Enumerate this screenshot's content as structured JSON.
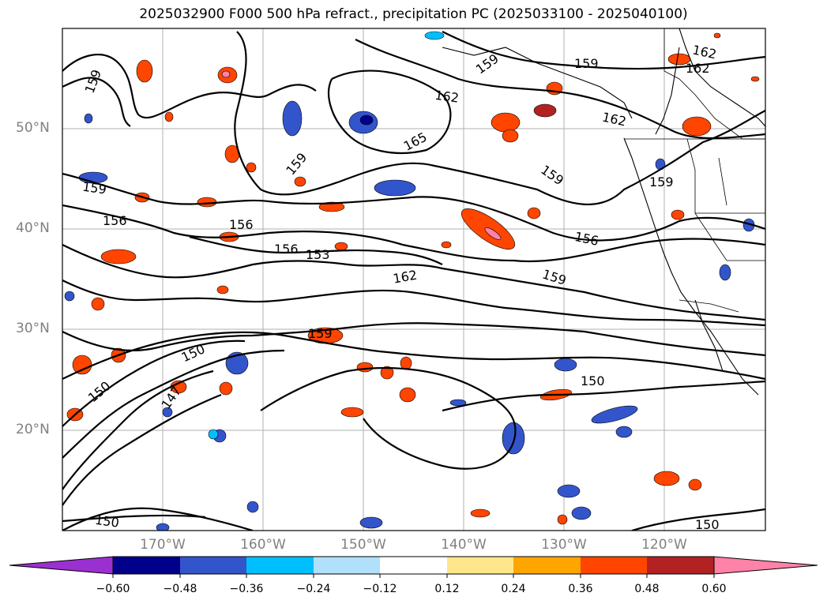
{
  "title": "2025032900 F000 500 hPa refract., precipitation PC (2025033100 - 2025040100)",
  "latitude_labels": [
    "50°N",
    "40°N",
    "30°N",
    "20°N"
  ],
  "longitude_labels": [
    "170°W",
    "160°W",
    "150°W",
    "140°W",
    "130°W",
    "120°W"
  ],
  "contour_labels": [
    "159",
    "162",
    "159",
    "159",
    "162",
    "162",
    "165",
    "159",
    "162",
    "159",
    "159",
    "159",
    "156",
    "156",
    "156",
    "153",
    "156",
    "162",
    "159",
    "159",
    "150",
    "150",
    "147",
    "150",
    "150",
    "150"
  ],
  "colorbar": {
    "ticks": [
      "−0.60",
      "−0.48",
      "−0.36",
      "−0.24",
      "−0.12",
      "0.12",
      "0.24",
      "0.36",
      "0.48",
      "0.60"
    ],
    "colors": [
      "#9b30d0",
      "#00008b",
      "#3355cc",
      "#00bfff",
      "#b0e0fa",
      "#ffffff",
      "#ffe68a",
      "#ffa500",
      "#ff4500",
      "#b22222",
      "#ff82a8"
    ]
  }
}
